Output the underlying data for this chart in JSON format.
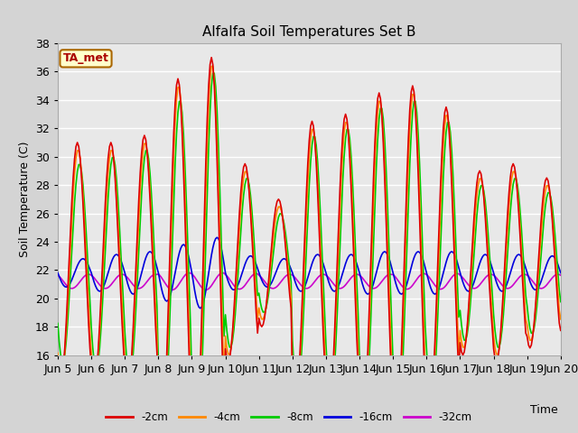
{
  "title": "Alfalfa Soil Temperatures Set B",
  "xlabel": "Time",
  "ylabel": "Soil Temperature (C)",
  "ylim": [
    16,
    38
  ],
  "xlim": [
    0,
    360
  ],
  "fig_facecolor": "#d4d4d4",
  "ax_facecolor": "#e8e8e8",
  "annotation_text": "TA_met",
  "annotation_bg": "#ffffcc",
  "annotation_border": "#aa6600",
  "annotation_text_color": "#aa0000",
  "tick_labels": [
    "Jun 5",
    "Jun 6",
    "Jun 7",
    "Jun 8",
    "Jun 9",
    "Jun 10",
    "Jun 11",
    "Jun 12",
    "Jun 13",
    "Jun 14",
    "Jun 15",
    "Jun 16",
    "Jun 17",
    "Jun 18",
    "Jun 19",
    "Jun 20"
  ],
  "tick_positions": [
    0,
    24,
    48,
    72,
    96,
    120,
    144,
    168,
    192,
    216,
    240,
    264,
    288,
    312,
    336,
    360
  ],
  "colors_2cm": "#dd0000",
  "colors_4cm": "#ff8800",
  "colors_8cm": "#00cc00",
  "colors_16cm": "#0000dd",
  "colors_32cm": "#cc00cc",
  "series_labels": [
    "-2cm",
    "-4cm",
    "-8cm",
    "-16cm",
    "-32cm"
  ],
  "yticks": [
    16,
    18,
    20,
    22,
    24,
    26,
    28,
    30,
    32,
    34,
    36,
    38
  ]
}
